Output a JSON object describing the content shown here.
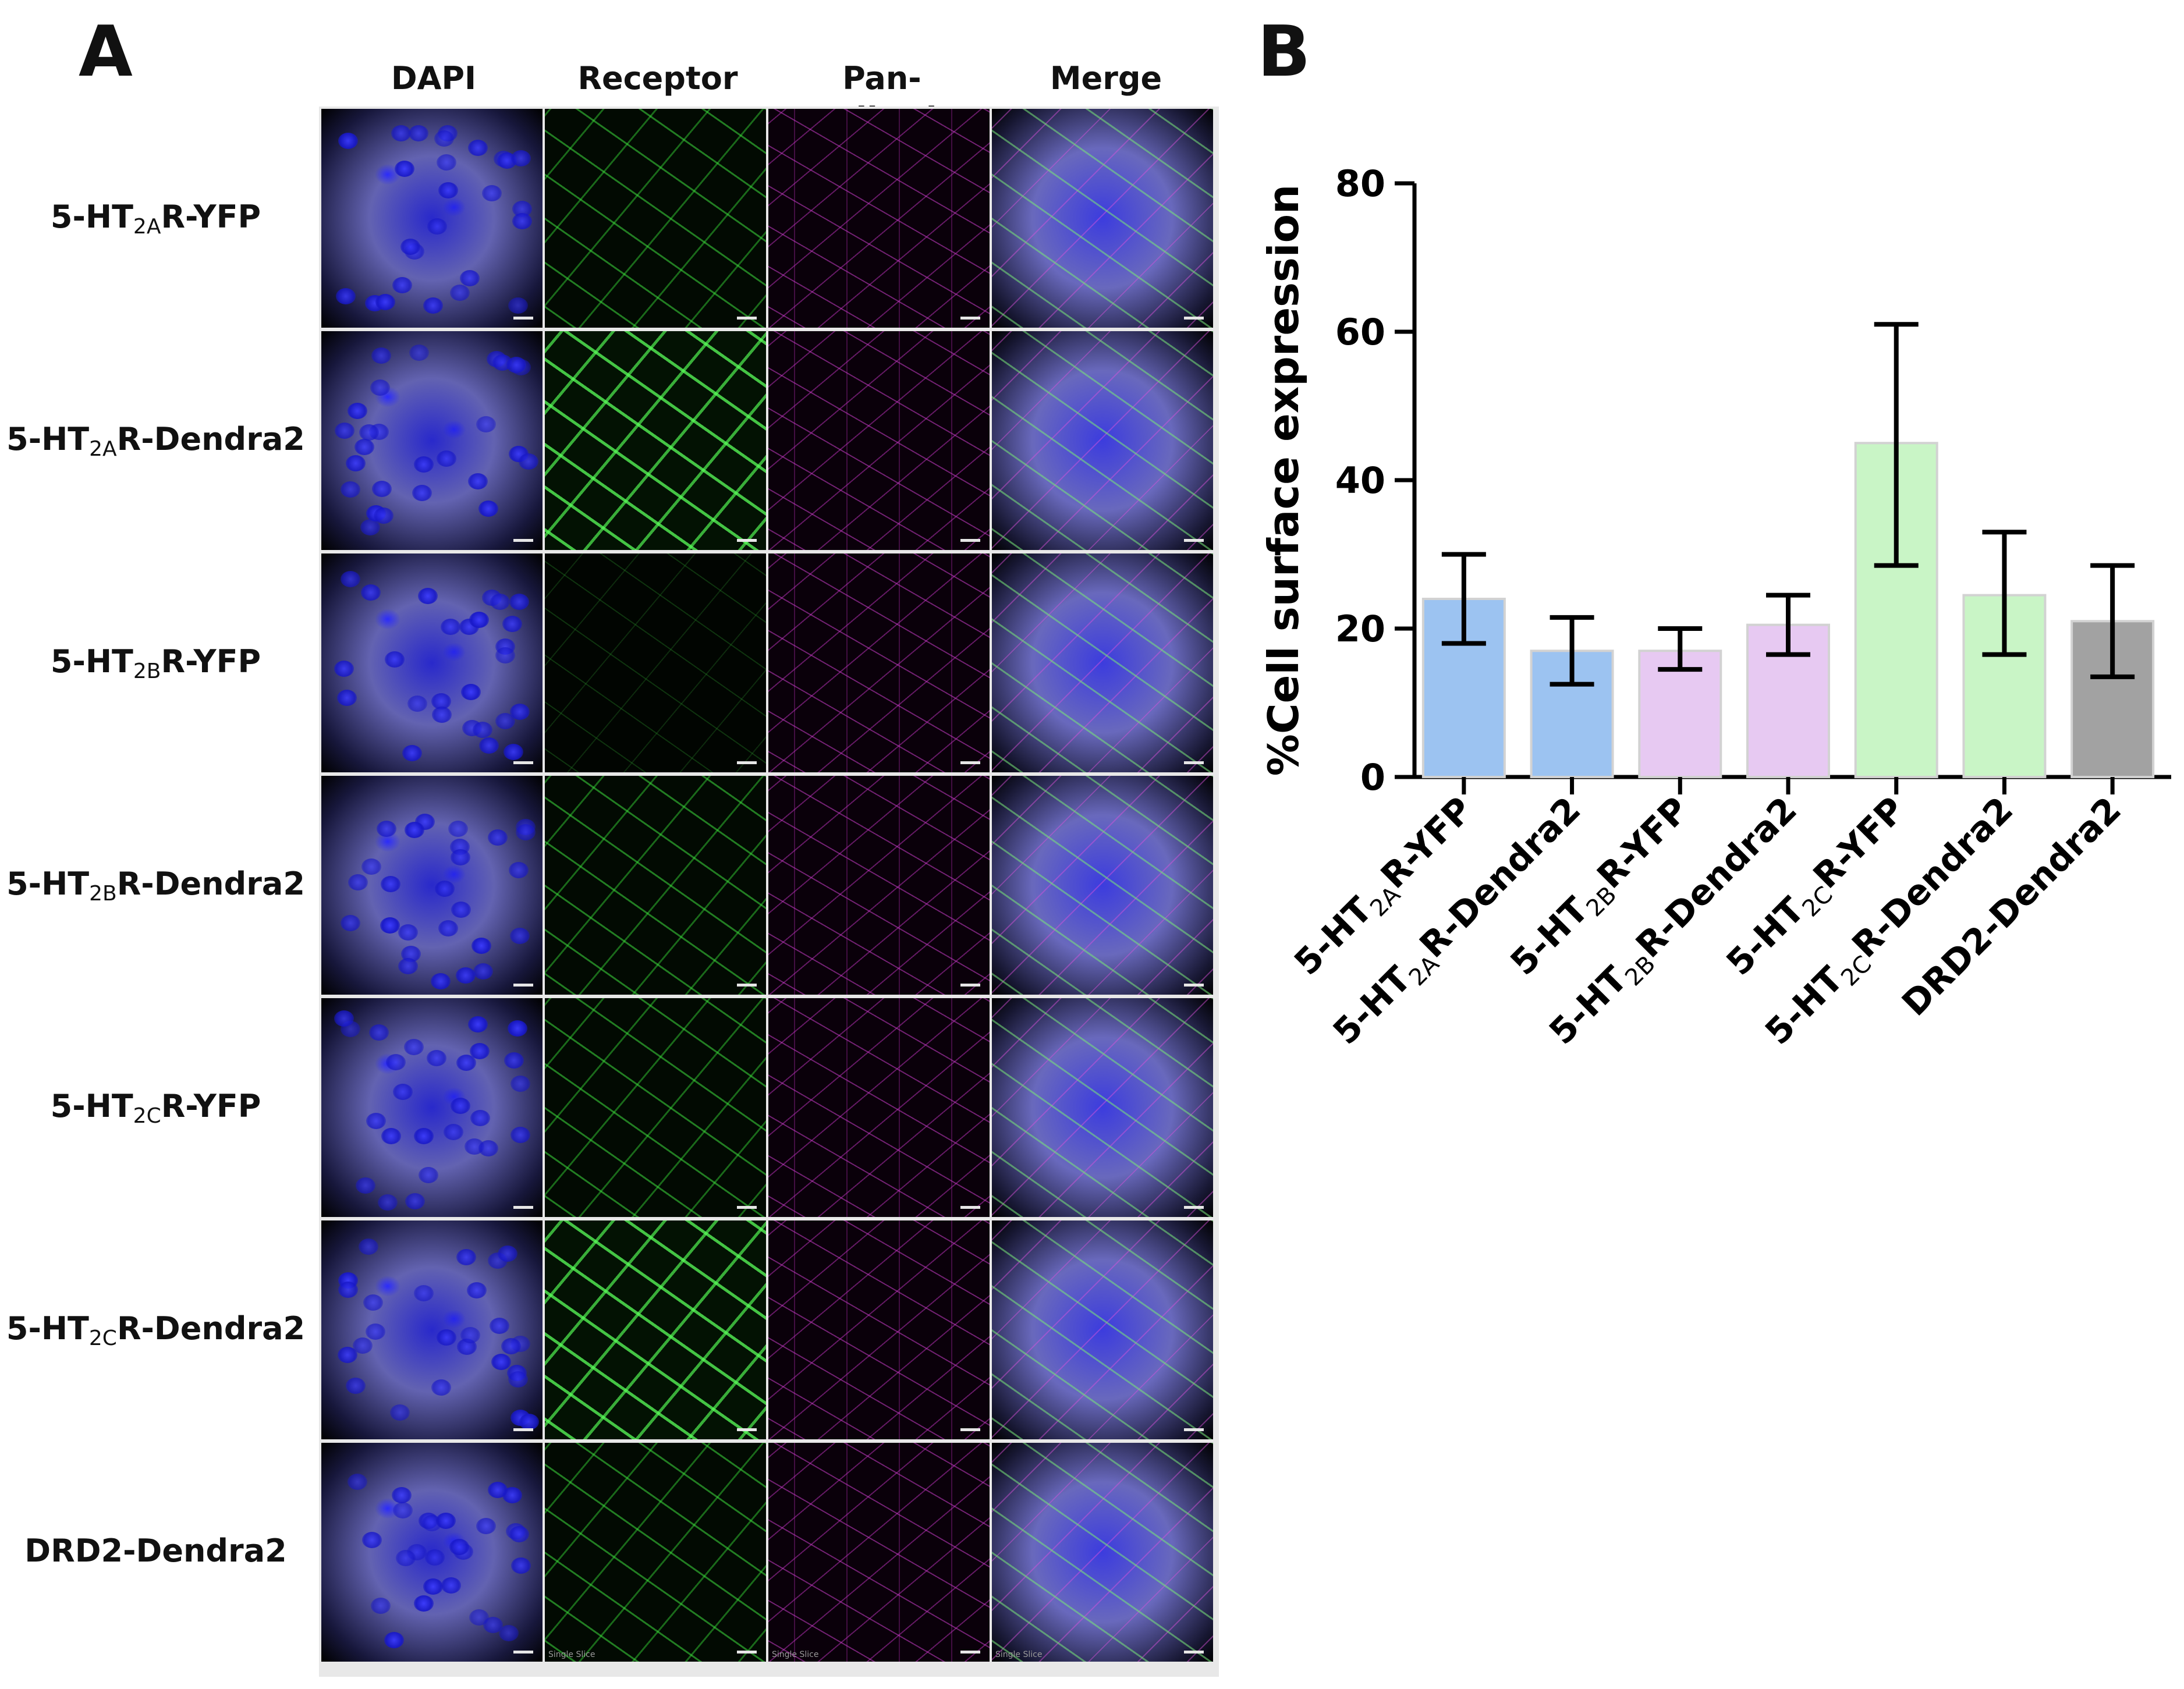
{
  "panel_a": {
    "letter": "A",
    "columns": [
      "DAPI",
      "Receptor",
      "Pan-cadherin",
      "Merge"
    ],
    "rows": [
      {
        "pre": "5-HT",
        "sub": "2A",
        "post": "R-YFP"
      },
      {
        "pre": "5-HT",
        "sub": "2A",
        "post": "R-Dendra2"
      },
      {
        "pre": "5-HT",
        "sub": "2B",
        "post": "R-YFP"
      },
      {
        "pre": "5-HT",
        "sub": "2B",
        "post": "R-Dendra2"
      },
      {
        "pre": "5-HT",
        "sub": "2C",
        "post": "R-YFP"
      },
      {
        "pre": "5-HT",
        "sub": "2C",
        "post": "R-Dendra2"
      },
      {
        "pre": "DRD2-Dendra2",
        "sub": "",
        "post": ""
      }
    ],
    "slice_note": "Single Slice"
  },
  "panel_b": {
    "letter": "B"
  },
  "chart_data": {
    "type": "bar",
    "categories": [
      {
        "pre": "5-HT",
        "sub": "2A",
        "post": "R-YFP"
      },
      {
        "pre": "5-HT",
        "sub": "2A",
        "post": "R-Dendra2"
      },
      {
        "pre": "5-HT",
        "sub": "2B",
        "post": "R-YFP"
      },
      {
        "pre": "5-HT",
        "sub": "2B",
        "post": "R-Dendra2"
      },
      {
        "pre": "5-HT",
        "sub": "2C",
        "post": "R-YFP"
      },
      {
        "pre": "5-HT",
        "sub": "2C",
        "post": "R-Dendra2"
      },
      {
        "pre": "DRD2-Dendra2",
        "sub": "",
        "post": ""
      }
    ],
    "values": [
      24,
      17,
      17,
      20.5,
      45,
      24.5,
      21
    ],
    "error_low": [
      18,
      12.5,
      14.5,
      16.5,
      28.5,
      16.5,
      13.5
    ],
    "error_high": [
      30,
      21.5,
      20,
      24.5,
      61,
      33,
      28.5
    ],
    "colors": [
      "#9cc3f1",
      "#9cc3f1",
      "#e7c9f2",
      "#e7c9f2",
      "#c9f5c6",
      "#c9f5c6",
      "#a2a2a2"
    ],
    "title": "",
    "xlabel": "",
    "ylabel": "%Cell surface expression",
    "ylim": [
      0,
      80
    ],
    "yticks": [
      0,
      20,
      40,
      60,
      80
    ],
    "grid": false,
    "legend": "none"
  }
}
